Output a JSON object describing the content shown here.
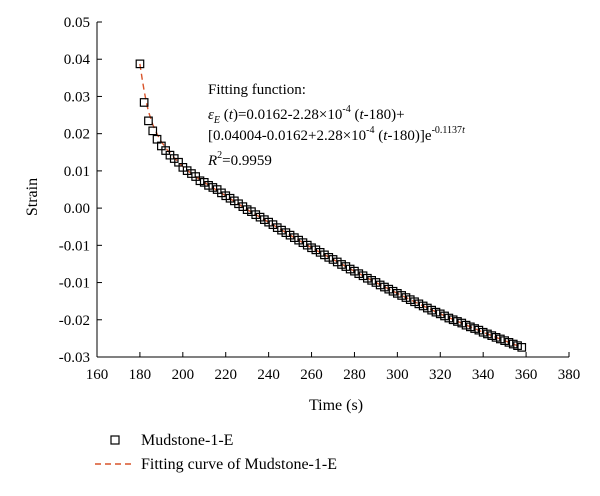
{
  "chart_data": {
    "type": "scatter",
    "xlabel": "Time (s)",
    "ylabel": "Strain",
    "xlim": [
      160,
      380
    ],
    "ylim": [
      -0.03,
      0.05
    ],
    "xticks": [
      "160",
      "180",
      "200",
      "220",
      "240",
      "260",
      "280",
      "300",
      "320",
      "340",
      "360",
      "380"
    ],
    "yticks": [
      "0.05",
      "0.04",
      "0.03",
      "0.02",
      "0.01",
      "0.00",
      "-0.01",
      "-0.01",
      "-0.02",
      "-0.03"
    ],
    "grid": false,
    "legend_position": "bottom",
    "series": [
      {
        "name": "Mudstone-1-E",
        "kind": "markers",
        "marker": "open-square",
        "color": "#000000",
        "x": [
          180,
          182,
          184,
          186,
          188,
          190,
          192,
          194,
          196,
          198,
          200,
          202,
          204,
          206,
          208,
          210,
          212,
          214,
          216,
          218,
          220,
          222,
          224,
          226,
          228,
          230,
          232,
          234,
          236,
          238,
          240,
          242,
          244,
          246,
          248,
          250,
          252,
          254,
          256,
          258,
          260,
          262,
          264,
          266,
          268,
          270,
          272,
          274,
          276,
          278,
          280,
          282,
          284,
          286,
          288,
          290,
          292,
          294,
          296,
          298,
          300,
          302,
          304,
          306,
          308,
          310,
          312,
          314,
          316,
          318,
          320,
          322,
          324,
          326,
          328,
          330,
          332,
          334,
          336,
          338,
          340,
          342,
          344,
          346,
          348,
          350,
          352,
          354,
          356,
          358
        ],
        "y": [
          0.04,
          0.0308,
          0.0264,
          0.024,
          0.022,
          0.0204,
          0.0193,
          0.0182,
          0.0174,
          0.0165,
          0.0153,
          0.0145,
          0.0138,
          0.0131,
          0.0121,
          0.0117,
          0.011,
          0.0105,
          0.01,
          0.0092,
          0.0085,
          0.0079,
          0.0073,
          0.0066,
          0.0059,
          0.0052,
          0.0047,
          0.004,
          0.0034,
          0.0028,
          0.0022,
          0.0016,
          0.0009,
          0.0003,
          -0.0003,
          -0.0009,
          -0.0015,
          -0.0021,
          -0.0027,
          -0.0033,
          -0.0039,
          -0.0044,
          -0.005,
          -0.0056,
          -0.0062,
          -0.0067,
          -0.0073,
          -0.0079,
          -0.0084,
          -0.009,
          -0.0095,
          -0.0101,
          -0.0106,
          -0.0112,
          -0.0117,
          -0.0122,
          -0.0128,
          -0.0133,
          -0.0138,
          -0.0143,
          -0.0148,
          -0.0153,
          -0.0158,
          -0.0163,
          -0.0168,
          -0.0173,
          -0.0178,
          -0.0183,
          -0.0188,
          -0.0193,
          -0.0197,
          -0.0202,
          -0.0207,
          -0.0211,
          -0.0215,
          -0.0219,
          -0.0224,
          -0.0228,
          -0.0232,
          -0.0236,
          -0.0241,
          -0.0245,
          -0.0249,
          -0.0253,
          -0.0257,
          -0.0261,
          -0.0265,
          -0.0269,
          -0.0273,
          -0.0277
        ]
      },
      {
        "name": "Fitting curve of Mudstone-1-E",
        "kind": "line",
        "line_style": "dashed",
        "color": "#d9542a",
        "x": [
          180,
          181,
          182,
          183,
          184,
          186,
          188,
          190,
          193,
          196,
          200,
          205,
          210,
          220,
          230,
          240,
          250,
          260,
          270,
          280,
          290,
          300,
          310,
          320,
          330,
          340,
          350,
          358
        ],
        "y": [
          0.04,
          0.0365,
          0.0335,
          0.0309,
          0.0286,
          0.0255,
          0.0232,
          0.0214,
          0.0193,
          0.0176,
          0.0155,
          0.0134,
          0.0117,
          0.0085,
          0.0052,
          0.0022,
          -0.0009,
          -0.0039,
          -0.0067,
          -0.0095,
          -0.0122,
          -0.0148,
          -0.0173,
          -0.0197,
          -0.0219,
          -0.0241,
          -0.0261,
          -0.0277
        ]
      }
    ],
    "annotation": {
      "line1": "Fitting function:",
      "eps_symbol": "ε",
      "eps_sub": "E",
      "l2a": " (",
      "l2_t1": "t",
      "l2b": ")=0.0162-2.28×10",
      "exp_neg4": "-4",
      "l2c": " (",
      "l2_t2": "t",
      "l2d": "-180)+",
      "l3a": "[0.04004-0.0162+2.28×10",
      "exp_neg4b": "-4",
      "l3b": " (",
      "l3_t": "t",
      "l3c": "-180)]e",
      "exp_e": "-0.1137",
      "exp_e_t": "t",
      "r2_sym": "R",
      "r2_exp": "2",
      "r2_val": "=0.9959"
    }
  }
}
